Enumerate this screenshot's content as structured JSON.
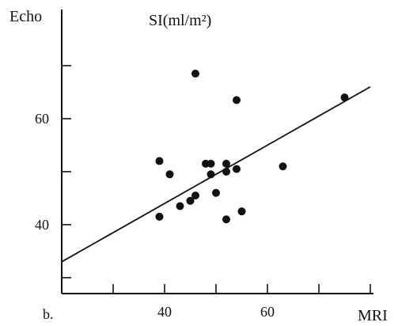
{
  "chart_data": {
    "type": "scatter",
    "panel_label": "b.",
    "title": "SI(ml/m²)",
    "xlabel": "MRI",
    "ylabel": "Echo",
    "xlim": [
      20,
      80
    ],
    "ylim": [
      27,
      80
    ],
    "x_ticks": [
      30,
      40,
      50,
      60,
      70,
      80
    ],
    "x_tick_labels": [
      "40",
      "60"
    ],
    "x_tick_label_values": [
      40,
      60
    ],
    "y_ticks": [
      30,
      40,
      50,
      60,
      70
    ],
    "y_tick_labels": [
      "40",
      "60"
    ],
    "y_tick_label_values": [
      40,
      60
    ],
    "grid": false,
    "series": [
      {
        "points": [
          [
            46,
            68.5
          ],
          [
            39,
            52.0
          ],
          [
            41,
            49.5
          ],
          [
            39,
            41.5
          ],
          [
            43,
            43.5
          ],
          [
            45,
            44.5
          ],
          [
            46,
            45.5
          ],
          [
            48,
            51.5
          ],
          [
            49,
            51.5
          ],
          [
            49,
            49.5
          ],
          [
            50,
            46.0
          ],
          [
            52,
            51.5
          ],
          [
            52,
            50.0
          ],
          [
            54,
            50.5
          ],
          [
            54,
            63.5
          ],
          [
            52,
            41.0
          ],
          [
            55,
            42.5
          ],
          [
            63,
            51.0
          ],
          [
            75,
            64.0
          ]
        ]
      }
    ],
    "fit_line": {
      "x": [
        20,
        80
      ],
      "y": [
        33.0,
        66.0
      ]
    }
  }
}
